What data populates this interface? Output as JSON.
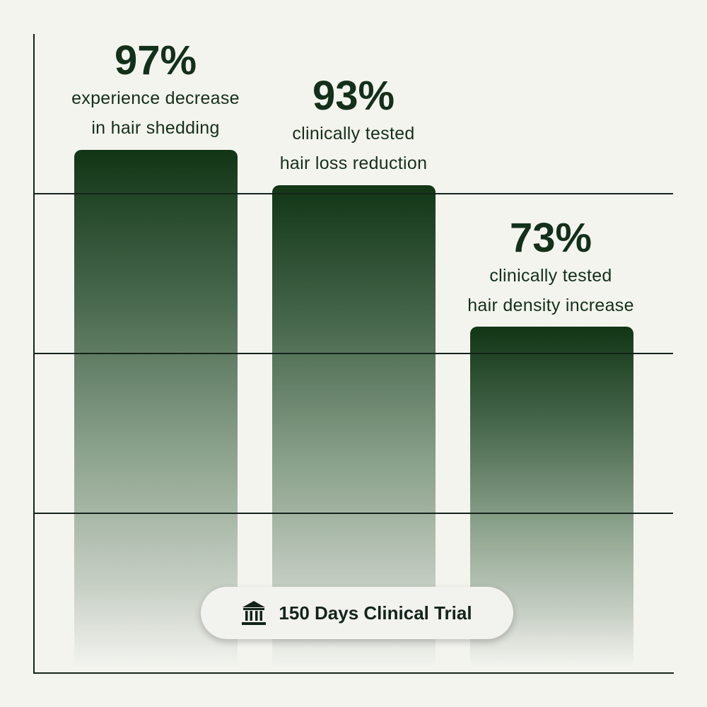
{
  "chart_data": {
    "type": "bar",
    "categories": [
      "experience decrease in hair shedding",
      "clinically tested hair loss reduction",
      "clinically tested hair density increase"
    ],
    "values": [
      97,
      93,
      73
    ],
    "data_labels": [
      "97%",
      "93%",
      "73%"
    ],
    "descriptions": [
      [
        "experience decrease",
        "in hair shedding"
      ],
      [
        "clinically tested",
        "hair loss reduction"
      ],
      [
        "clinically tested",
        "hair density increase"
      ]
    ],
    "grid": true,
    "bar_color": "#123516"
  },
  "badge": {
    "icon": "bank-icon",
    "label": "150 Days Clinical Trial"
  }
}
